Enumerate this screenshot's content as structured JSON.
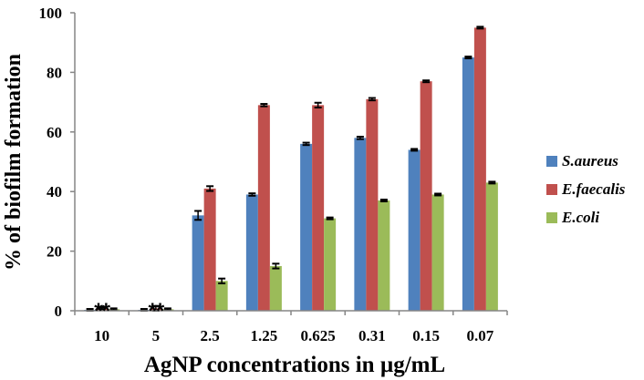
{
  "chart_data": {
    "type": "bar",
    "title": "",
    "xlabel": "AgNP concentrations in µg/mL",
    "ylabel": "% of biofilm formation",
    "ylim": [
      0,
      100
    ],
    "yticks": [
      "0",
      "20",
      "40",
      "60",
      "80",
      "100"
    ],
    "categories": [
      "10",
      "5",
      "2.5",
      "1.25",
      "0.625",
      "0.31",
      "0.15",
      "0.07"
    ],
    "series": [
      {
        "name": "S.aureus",
        "color": "#4f81bd",
        "values": [
          0.3,
          0.3,
          32,
          39,
          56,
          58,
          54,
          85
        ],
        "errors": [
          0.3,
          0.3,
          1.5,
          0.4,
          0.4,
          0.4,
          0.3,
          0.3
        ]
      },
      {
        "name": "E.faecalis",
        "color": "#c0504d",
        "values": [
          0.8,
          0.8,
          41,
          69,
          69,
          71,
          77,
          95
        ],
        "errors": [
          0.3,
          0.8,
          0.8,
          0.4,
          0.8,
          0.4,
          0.3,
          0.3
        ]
      },
      {
        "name": "E.coli",
        "color": "#9bbb59",
        "values": [
          0.5,
          0.5,
          10,
          15,
          31,
          37,
          39,
          43
        ],
        "errors": [
          0.3,
          0.3,
          0.8,
          0.8,
          0.3,
          0.3,
          0.3,
          0.3
        ]
      }
    ],
    "annotations": [
      {
        "category": "10",
        "text": "**"
      },
      {
        "category": "5",
        "text": "**"
      }
    ],
    "legend": {
      "position": "right"
    },
    "grid": false
  }
}
